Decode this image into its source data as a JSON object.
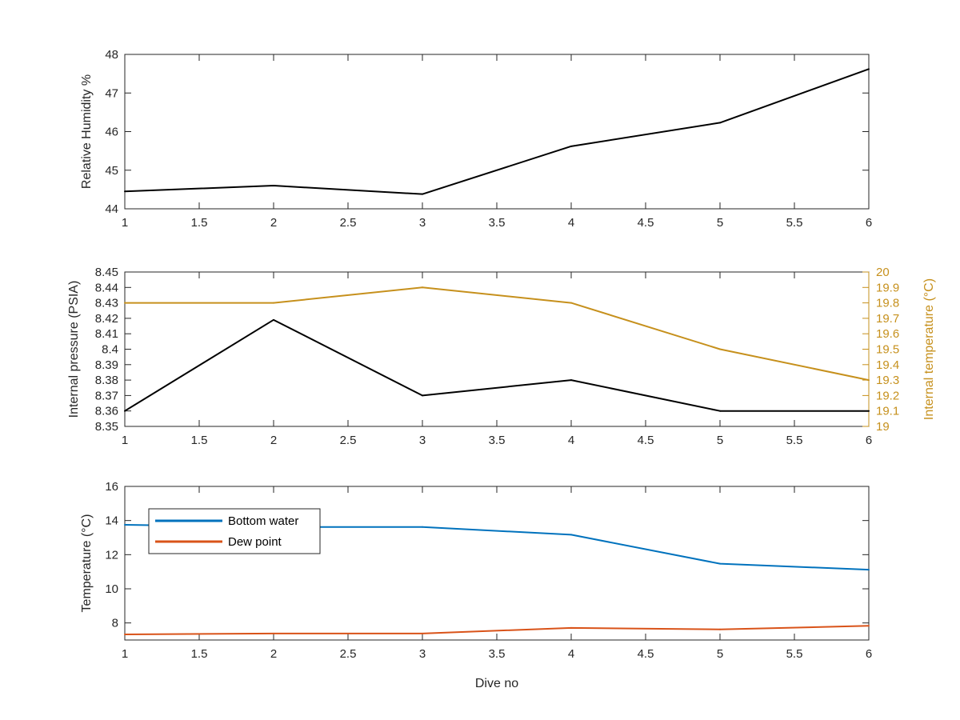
{
  "figure": {
    "xlabel": "Dive no"
  },
  "chart_data": [
    {
      "type": "line",
      "x": [
        1,
        2,
        3,
        4,
        5,
        6
      ],
      "xlim": [
        1,
        6
      ],
      "xticks": [
        "1",
        "1.5",
        "2",
        "2.5",
        "3",
        "3.5",
        "4",
        "4.5",
        "5",
        "5.5",
        "6"
      ],
      "ylabel": "Relative Humidity %",
      "ylim": [
        44,
        48
      ],
      "yticks": [
        "44",
        "45",
        "46",
        "47",
        "48"
      ],
      "series": [
        {
          "values": [
            44.45,
            44.6,
            44.38,
            45.62,
            46.23,
            47.62
          ],
          "color": "#000000"
        }
      ]
    },
    {
      "type": "line",
      "x": [
        1,
        2,
        3,
        4,
        5,
        6
      ],
      "xlim": [
        1,
        6
      ],
      "xticks": [
        "1",
        "1.5",
        "2",
        "2.5",
        "3",
        "3.5",
        "4",
        "4.5",
        "5",
        "5.5",
        "6"
      ],
      "ylabel": "Internal pressure (PSIA)",
      "ylim": [
        8.35,
        8.45
      ],
      "yticks": [
        "8.35",
        "8.36",
        "8.37",
        "8.38",
        "8.39",
        "8.4",
        "8.41",
        "8.42",
        "8.43",
        "8.44",
        "8.45"
      ],
      "series": [
        {
          "values": [
            8.36,
            8.419,
            8.37,
            8.38,
            8.36,
            8.36
          ],
          "color": "#000000",
          "axis": "left"
        },
        {
          "values": [
            19.8,
            19.8,
            19.9,
            19.8,
            19.5,
            19.3
          ],
          "color": "#c6901c",
          "axis": "right"
        }
      ],
      "y2label": "Internal temperature (°C)",
      "y2lim": [
        19,
        20
      ],
      "y2ticks": [
        "19",
        "19.1",
        "19.2",
        "19.3",
        "19.4",
        "19.5",
        "19.6",
        "19.7",
        "19.8",
        "19.9",
        "20"
      ],
      "y2color": "#c6901c"
    },
    {
      "type": "line",
      "x": [
        1,
        2,
        3,
        4,
        5,
        6
      ],
      "xlim": [
        1,
        6
      ],
      "xticks": [
        "1",
        "1.5",
        "2",
        "2.5",
        "3",
        "3.5",
        "4",
        "4.5",
        "5",
        "5.5",
        "6"
      ],
      "ylabel": "Temperature (°C)",
      "ylim": [
        7,
        16
      ],
      "yticks": [
        "8",
        "10",
        "12",
        "14",
        "16"
      ],
      "legend": "top-left",
      "series": [
        {
          "name": "Bottom water",
          "values": [
            13.75,
            13.62,
            13.62,
            13.17,
            11.47,
            11.12
          ],
          "color": "#0072bd"
        },
        {
          "name": "Dew point",
          "values": [
            7.33,
            7.38,
            7.38,
            7.71,
            7.62,
            7.83
          ],
          "color": "#d95319"
        }
      ]
    }
  ]
}
